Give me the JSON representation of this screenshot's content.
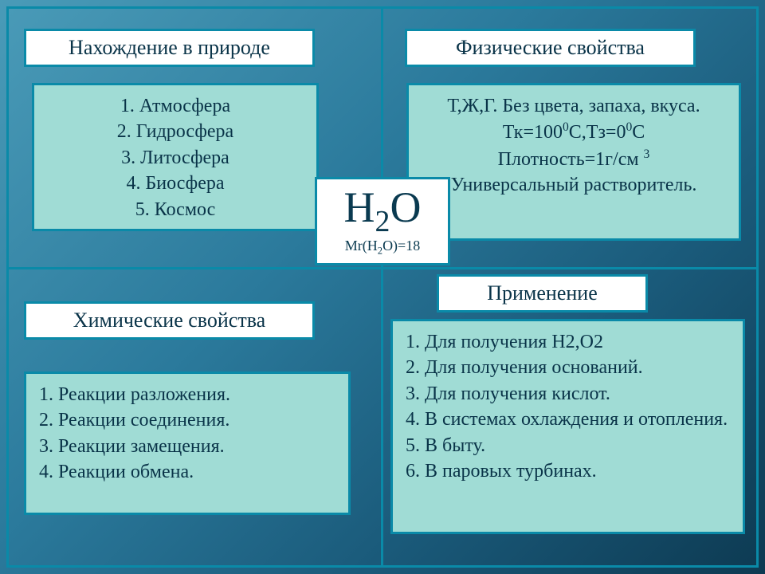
{
  "colors": {
    "border": "#0a8aa8",
    "title_bg": "#ffffff",
    "content_bg": "#a0dcd5",
    "text": "#093348",
    "bg_gradient_from": "#4a9bb8",
    "bg_gradient_to": "#0d3a52"
  },
  "center": {
    "formula_html": "H<span class='sub'>2</span>O",
    "sub_html": "Mr(H<span class='sub'>2</span>O)=18"
  },
  "q1": {
    "title": "Нахождение в природе",
    "items": [
      "1.   Атмосфера",
      "2. Гидросфера",
      "3. Литосфера",
      "4. Биосфера",
      "5. Космос"
    ]
  },
  "q2": {
    "title": "Физические свойства",
    "lines_html": [
      "Т,Ж,Г. Без цвета, запаха, вкуса.",
      "Тк=100<span class='sup'>0</span>C,Тз=0<span class='sup'>0</span>С",
      "Плотность=1г/см <span class='sup'>3</span>",
      "Универсальный растворитель."
    ]
  },
  "q3": {
    "title": "Химические свойства",
    "items": [
      "1.  Реакции разложения.",
      "2.  Реакции соединения.",
      "3.   Реакции замещения.",
      "4.   Реакции обмена."
    ]
  },
  "q4": {
    "title": "Применение",
    "items": [
      "1. Для получения H2,O2",
      "2. Для получения оснований.",
      "3. Для получения кислот.",
      "4. В системах охлаждения и отопления.",
      "5. В быту.",
      "6. В паровых турбинах."
    ]
  }
}
